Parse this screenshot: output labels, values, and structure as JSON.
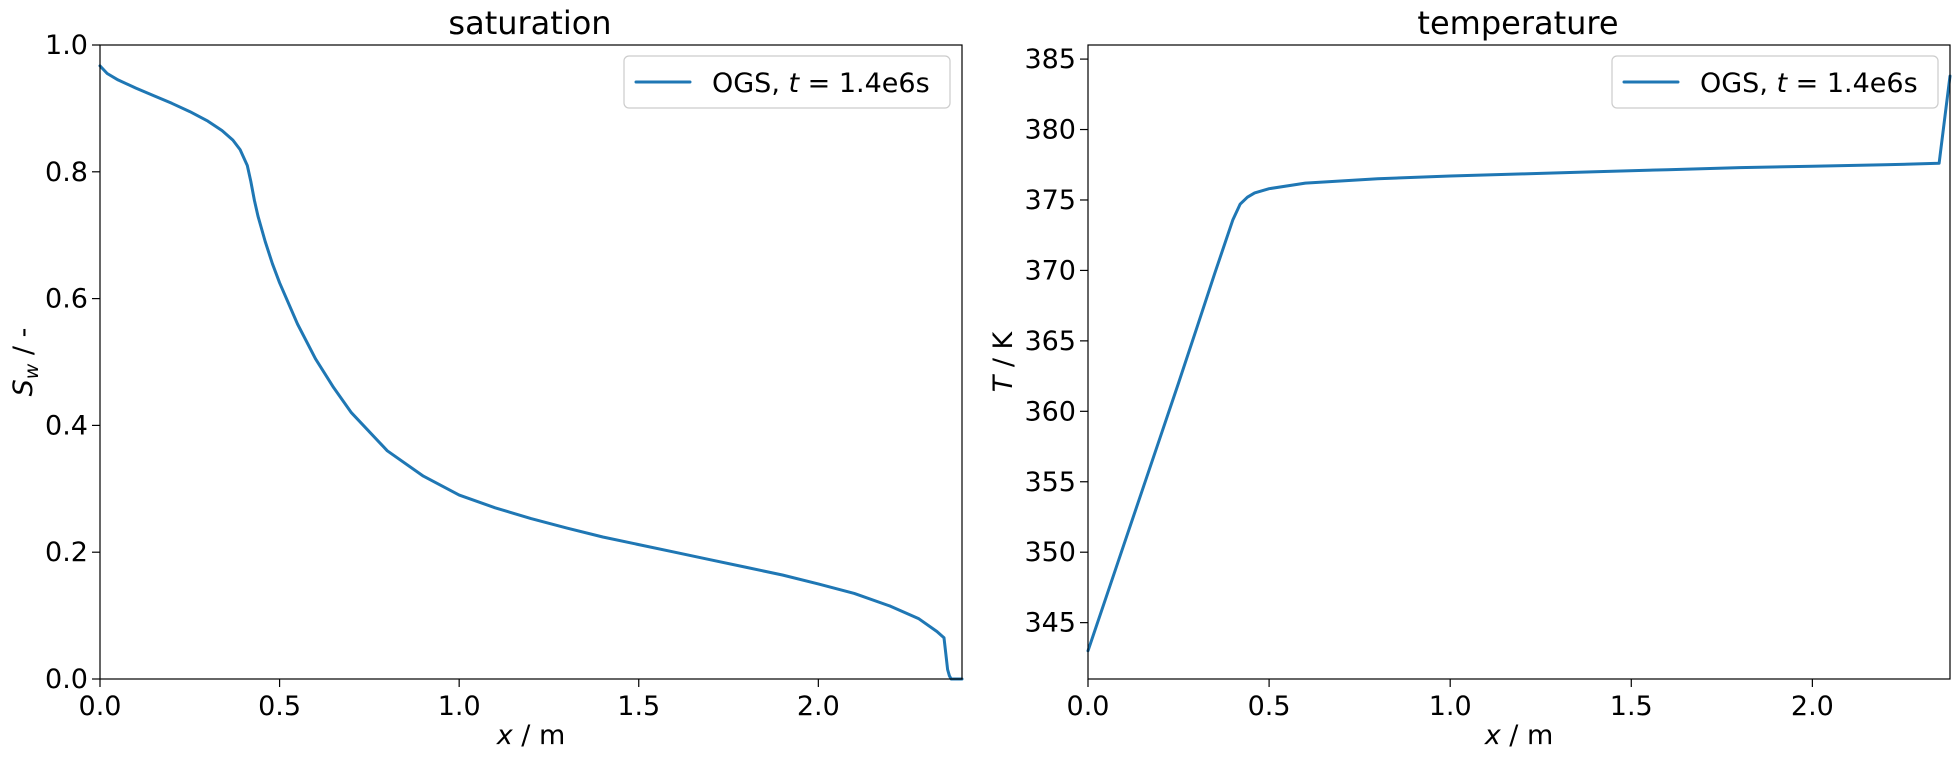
{
  "colors": {
    "series": "#1f77b4"
  },
  "chart_data": [
    {
      "type": "line",
      "title": "saturation",
      "xlabel_var": "x",
      "xlabel_unit": " / m",
      "ylabel_var": "S",
      "ylabel_sub": "w",
      "ylabel_unit": " / -",
      "xlim": [
        0.0,
        2.4
      ],
      "ylim": [
        0.0,
        1.0
      ],
      "xticks": [
        "0.0",
        "0.5",
        "1.0",
        "1.5",
        "2.0"
      ],
      "yticks": [
        "0.0",
        "0.2",
        "0.4",
        "0.6",
        "0.8",
        "1.0"
      ],
      "legend_position": "top-right",
      "grid": false,
      "series": [
        {
          "name_pre": "OGS, ",
          "name_var": "t",
          "name_post": " = 1.4e6s",
          "x": [
            0.0,
            0.02,
            0.05,
            0.1,
            0.15,
            0.2,
            0.25,
            0.3,
            0.34,
            0.37,
            0.39,
            0.41,
            0.42,
            0.43,
            0.44,
            0.46,
            0.48,
            0.5,
            0.55,
            0.6,
            0.65,
            0.7,
            0.8,
            0.9,
            1.0,
            1.1,
            1.2,
            1.3,
            1.4,
            1.5,
            1.6,
            1.7,
            1.8,
            1.9,
            2.0,
            2.1,
            2.2,
            2.28,
            2.33,
            2.35,
            2.355,
            2.36,
            2.365,
            2.37,
            2.38,
            2.4
          ],
          "y": [
            0.967,
            0.955,
            0.945,
            0.932,
            0.92,
            0.908,
            0.895,
            0.88,
            0.865,
            0.85,
            0.835,
            0.81,
            0.785,
            0.755,
            0.73,
            0.69,
            0.655,
            0.625,
            0.56,
            0.505,
            0.46,
            0.42,
            0.36,
            0.32,
            0.29,
            0.27,
            0.253,
            0.238,
            0.224,
            0.212,
            0.2,
            0.188,
            0.176,
            0.164,
            0.15,
            0.135,
            0.115,
            0.095,
            0.075,
            0.065,
            0.04,
            0.015,
            0.005,
            0.0,
            0.0,
            0.0
          ]
        }
      ]
    },
    {
      "type": "line",
      "title": "temperature",
      "xlabel_var": "x",
      "xlabel_unit": " / m",
      "ylabel_var": "T",
      "ylabel_sub": "",
      "ylabel_unit": " / K",
      "xlim": [
        0.0,
        2.38
      ],
      "ylim": [
        341.0,
        386.0
      ],
      "xticks": [
        "0.0",
        "0.5",
        "1.0",
        "1.5",
        "2.0"
      ],
      "yticks": [
        "345",
        "350",
        "355",
        "360",
        "365",
        "370",
        "375",
        "380",
        "385"
      ],
      "legend_position": "top-right",
      "grid": false,
      "series": [
        {
          "name_pre": "OGS, ",
          "name_var": "t",
          "name_post": " = 1.4e6s",
          "x": [
            0.0,
            0.05,
            0.1,
            0.15,
            0.2,
            0.25,
            0.3,
            0.35,
            0.4,
            0.42,
            0.44,
            0.46,
            0.5,
            0.6,
            0.8,
            1.0,
            1.2,
            1.4,
            1.6,
            1.8,
            2.0,
            2.2,
            2.35,
            2.38
          ],
          "y": [
            343.0,
            346.8,
            350.6,
            354.4,
            358.2,
            362.0,
            365.9,
            369.8,
            373.6,
            374.7,
            375.2,
            375.5,
            375.8,
            376.2,
            376.5,
            376.7,
            376.85,
            377.0,
            377.15,
            377.3,
            377.4,
            377.5,
            377.6,
            383.8
          ]
        }
      ]
    }
  ]
}
